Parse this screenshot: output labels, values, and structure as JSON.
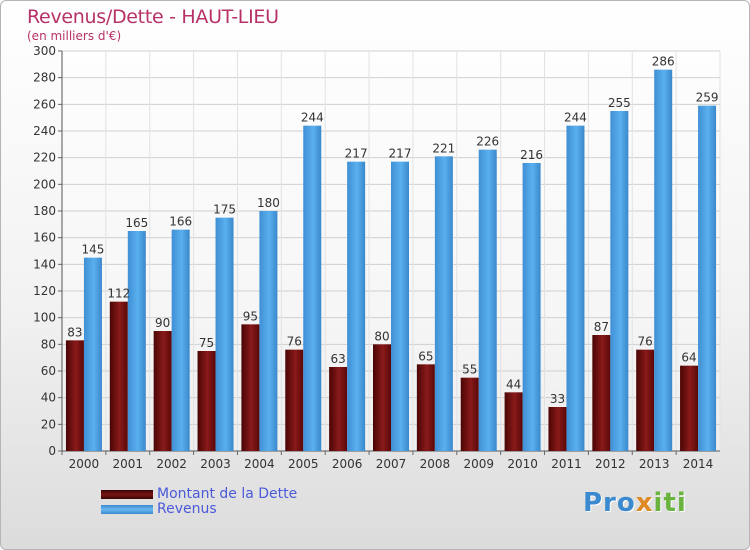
{
  "header": {
    "title": "Revenus/Dette - HAUT-LIEU",
    "subtitle": "(en milliers d'€)"
  },
  "chart_data": {
    "type": "bar",
    "title": "Revenus/Dette - HAUT-LIEU",
    "subtitle": "(en milliers d'€)",
    "categories": [
      "2000",
      "2001",
      "2002",
      "2003",
      "2004",
      "2005",
      "2006",
      "2007",
      "2008",
      "2009",
      "2010",
      "2011",
      "2012",
      "2013",
      "2014"
    ],
    "series": [
      {
        "name": "Montant de la Dette",
        "color": "#7a1212",
        "values": [
          83,
          112,
          90,
          75,
          95,
          76,
          63,
          80,
          65,
          55,
          44,
          33,
          87,
          76,
          64
        ]
      },
      {
        "name": "Revenus",
        "color": "#4a9fe0",
        "values": [
          145,
          165,
          166,
          175,
          180,
          244,
          217,
          217,
          221,
          226,
          216,
          244,
          255,
          286,
          259
        ]
      }
    ],
    "ylim": [
      0,
      300
    ],
    "yticks": [
      0,
      20,
      40,
      60,
      80,
      100,
      120,
      140,
      160,
      180,
      200,
      220,
      240,
      260,
      280,
      300
    ],
    "grid": true,
    "legend_position": "bottom-left"
  },
  "legend": {
    "items": [
      {
        "label": "Montant de la Dette",
        "color": "#6a0f0f"
      },
      {
        "label": "Revenus",
        "color": "#4a9fe0"
      }
    ]
  },
  "logo": {
    "text": "Proxiti",
    "parts": [
      "Pro",
      "x",
      "iti"
    ]
  }
}
